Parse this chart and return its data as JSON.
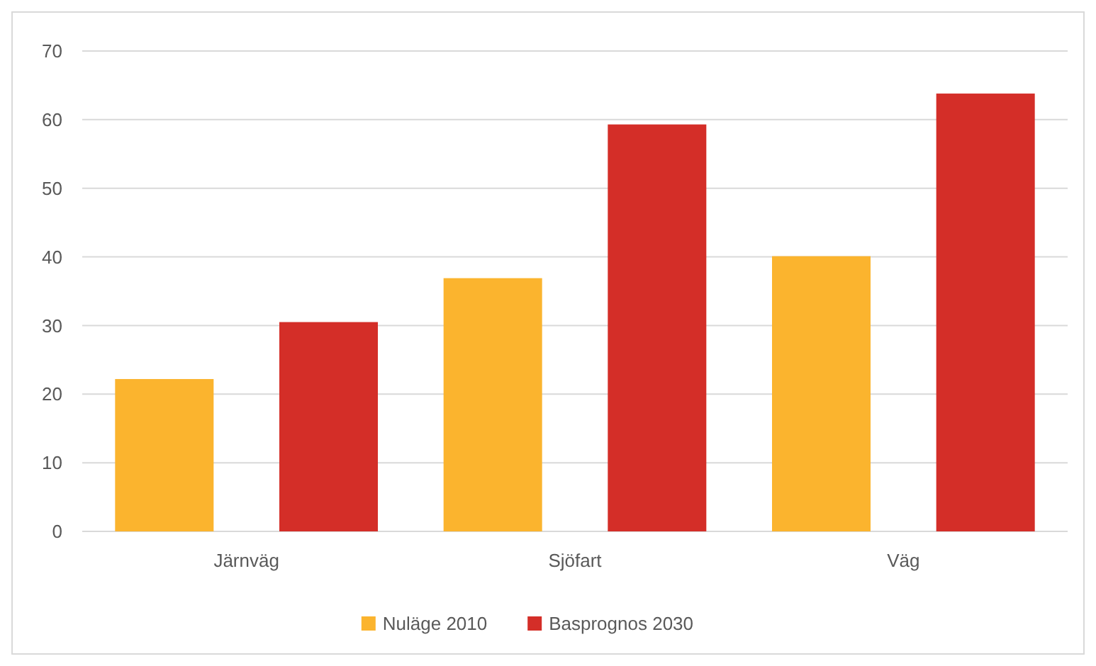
{
  "chart_data": {
    "type": "bar",
    "categories": [
      "Järnväg",
      "Sjöfart",
      "Väg"
    ],
    "series": [
      {
        "name": "Nuläge 2010",
        "color": "#fbb42e",
        "values": [
          22.2,
          36.9,
          40.1
        ]
      },
      {
        "name": "Basprognos 2030",
        "color": "#d42e28",
        "values": [
          30.5,
          59.3,
          63.8
        ]
      }
    ],
    "ylim": [
      0,
      70
    ],
    "yticks": [
      0,
      10,
      20,
      30,
      40,
      50,
      60,
      70
    ],
    "grid": "y",
    "legend": "bottom"
  }
}
